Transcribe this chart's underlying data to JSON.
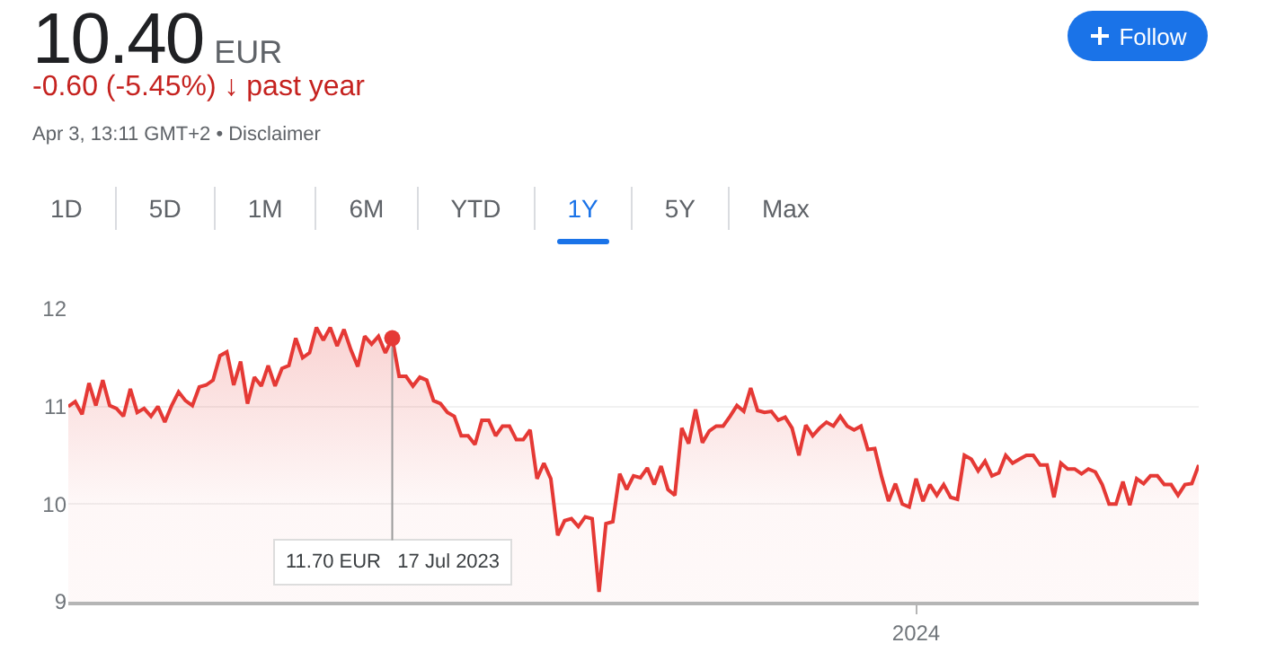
{
  "chart_data": {
    "type": "area",
    "title": "10.40",
    "subtitle": "-0.60 (-5.45%) ↓ past year",
    "annotations": [
      "EUR",
      "Apr 3, 13:11 GMT+2 • Disclaimer",
      "Follow",
      "1D",
      "5D",
      "1M",
      "6M",
      "YTD",
      "1Y",
      "5Y",
      "Max",
      {
        "text": "11.70 EUR  17 Jul 2023",
        "y": 11.7
      }
    ],
    "categories": [
      null,
      null,
      null,
      null,
      null,
      null,
      null,
      null,
      null,
      null,
      null,
      null,
      null,
      null,
      null,
      null,
      null,
      null,
      null,
      null,
      null,
      null,
      null,
      null,
      null,
      null,
      null,
      null,
      null,
      null,
      null,
      null,
      null,
      null,
      null,
      null,
      null,
      null,
      null,
      null,
      null,
      null,
      null,
      null,
      null,
      null,
      null,
      null,
      null,
      null,
      null,
      null,
      null,
      null,
      null,
      null,
      null,
      null,
      null,
      null,
      null,
      null,
      null,
      null,
      null,
      null,
      null,
      null,
      null,
      null,
      null,
      null,
      null,
      null,
      null,
      null,
      null,
      null,
      null,
      null,
      null,
      null,
      null,
      null,
      null,
      null,
      null,
      null,
      null,
      null,
      null,
      null,
      null,
      null,
      null,
      null,
      null,
      null,
      null,
      null,
      null,
      null,
      null,
      null,
      null,
      null,
      null,
      null,
      null,
      null,
      null,
      null,
      null,
      null,
      null,
      null,
      null,
      null,
      null,
      null,
      null,
      null,
      null,
      "2024",
      null,
      null,
      null,
      null,
      null,
      null,
      null,
      null,
      null,
      null,
      null,
      null,
      null,
      null,
      null,
      null,
      null,
      null,
      null,
      null,
      null,
      null,
      null,
      null,
      null,
      null,
      null,
      null,
      null,
      null,
      null,
      null,
      null,
      null,
      null,
      null,
      null,
      null,
      null,
      null,
      null
    ],
    "series": [
      {
        "color": "#e53935",
        "values": [
          11.0,
          11.05,
          10.92,
          11.24,
          11.01,
          11.27,
          11.01,
          10.98,
          10.9,
          11.18,
          10.94,
          10.98,
          10.9,
          11.0,
          10.84,
          11.01,
          11.15,
          11.06,
          11.01,
          11.2,
          11.22,
          11.27,
          11.52,
          11.56,
          11.22,
          11.46,
          11.03,
          11.3,
          11.21,
          11.42,
          11.21,
          11.39,
          11.42,
          11.7,
          11.5,
          11.55,
          11.81,
          11.68,
          11.81,
          11.62,
          11.79,
          11.58,
          11.41,
          11.72,
          11.64,
          11.72,
          11.55,
          11.7,
          11.31,
          11.31,
          11.21,
          11.3,
          11.27,
          11.06,
          11.03,
          10.94,
          10.9,
          10.7,
          10.7,
          10.61,
          10.86,
          10.86,
          10.7,
          10.8,
          10.8,
          10.66,
          10.66,
          10.76,
          10.26,
          10.42,
          10.26,
          9.68,
          9.83,
          9.85,
          9.77,
          9.87,
          9.85,
          9.1,
          9.8,
          9.82,
          10.31,
          10.15,
          10.29,
          10.27,
          10.37,
          10.2,
          10.39,
          10.15,
          10.09,
          10.78,
          10.62,
          10.97,
          10.63,
          10.75,
          10.8,
          10.8,
          10.9,
          11.01,
          10.95,
          11.19,
          10.96,
          10.94,
          10.95,
          10.86,
          10.89,
          10.78,
          10.5,
          10.81,
          10.7,
          10.78,
          10.84,
          10.8,
          10.9,
          10.8,
          10.76,
          10.8,
          10.56,
          10.57,
          10.28,
          10.03,
          10.21,
          10.0,
          9.97,
          10.26,
          10.03,
          10.2,
          10.09,
          10.2,
          10.07,
          10.05,
          10.5,
          10.46,
          10.34,
          10.44,
          10.29,
          10.32,
          10.5,
          10.42,
          10.46,
          10.5,
          10.5,
          10.4,
          10.4,
          10.07,
          10.42,
          10.36,
          10.36,
          10.31,
          10.36,
          10.33,
          10.2,
          10.0,
          10.0,
          10.23,
          9.99,
          10.26,
          10.21,
          10.29,
          10.29,
          10.2,
          10.2,
          10.09,
          10.2,
          10.21,
          10.4
        ]
      },
      {
        "type": "scatter",
        "color": "#e53935",
        "marker": "circle",
        "values": [
          null,
          null,
          null,
          null,
          null,
          null,
          null,
          null,
          null,
          null,
          null,
          null,
          null,
          null,
          null,
          null,
          null,
          null,
          null,
          null,
          null,
          null,
          null,
          null,
          null,
          null,
          null,
          null,
          null,
          null,
          null,
          null,
          null,
          null,
          null,
          null,
          null,
          null,
          null,
          null,
          null,
          null,
          null,
          null,
          null,
          null,
          null,
          11.7,
          null,
          null,
          null,
          null,
          null,
          null,
          null,
          null,
          null,
          null,
          null,
          null,
          null,
          null,
          null,
          null,
          null,
          null,
          null,
          null,
          null,
          null,
          null,
          null,
          null,
          null,
          null,
          null,
          null,
          null,
          null,
          null,
          null,
          null,
          null,
          null,
          null,
          null,
          null,
          null,
          null,
          null,
          null,
          null,
          null,
          null,
          null,
          null,
          null,
          null,
          null,
          null,
          null,
          null,
          null,
          null,
          null,
          null,
          null,
          null,
          null,
          null,
          null,
          null,
          null,
          null,
          null,
          null,
          null,
          null,
          null,
          null,
          null,
          null,
          null,
          null,
          null,
          null,
          null,
          null,
          null,
          null,
          null,
          null,
          null,
          null,
          null,
          null,
          null,
          null,
          null,
          null,
          null,
          null,
          null,
          null,
          null,
          null,
          null,
          null,
          null,
          null,
          null,
          null,
          null,
          null,
          null,
          null,
          null,
          null,
          null,
          null,
          null,
          null,
          null,
          null,
          null
        ]
      }
    ],
    "ylim": [
      9,
      12
    ],
    "yticks": [
      9,
      10,
      11,
      12
    ],
    "grid": "y"
  }
}
